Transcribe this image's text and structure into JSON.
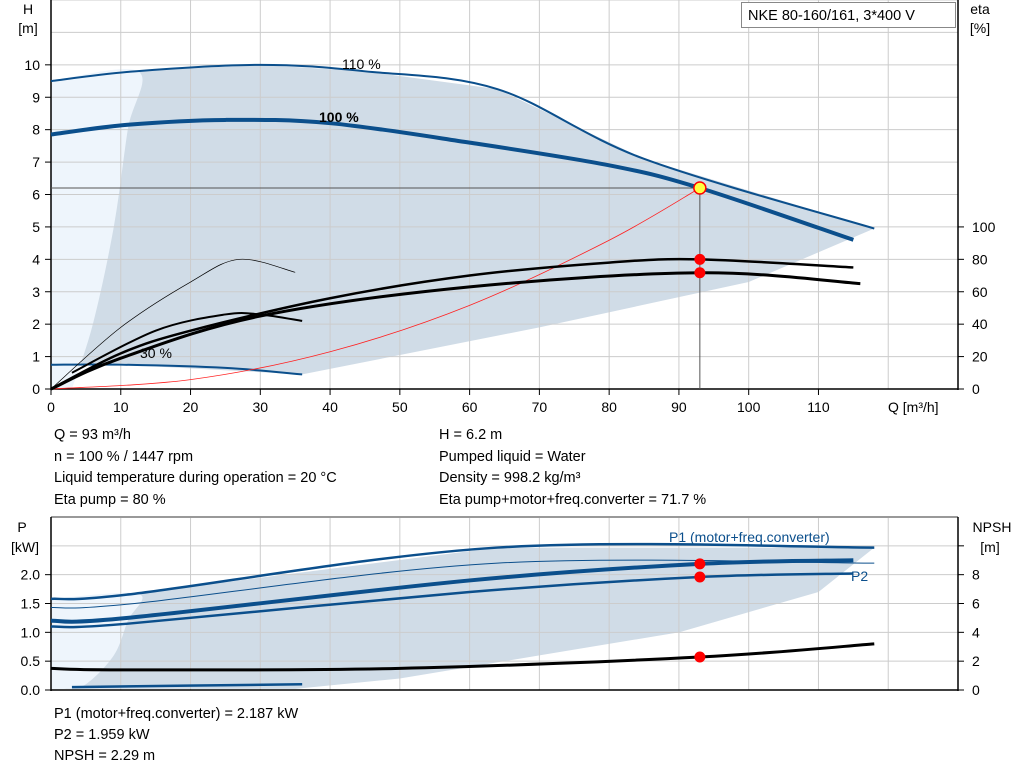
{
  "title_box": "NKE 80-160/161, 3*400 V",
  "chart_data": [
    {
      "type": "line",
      "name": "head-efficiency",
      "xlabel": "Q [m³/h]",
      "ylabel_left": [
        "H",
        "[m]"
      ],
      "ylabel_right": [
        "eta",
        "[%]"
      ],
      "xlim": [
        0,
        130
      ],
      "ylim": [
        0,
        12
      ],
      "y2lim": [
        0,
        240
      ],
      "xticks": [
        0,
        10,
        20,
        30,
        40,
        50,
        60,
        70,
        80,
        90,
        100,
        110
      ],
      "yticks": [
        0,
        1,
        2,
        3,
        4,
        5,
        6,
        7,
        8,
        9,
        10
      ],
      "y2ticks": [
        0,
        20,
        40,
        60,
        80,
        100
      ],
      "grid": true,
      "series": [
        {
          "name": "110 %",
          "axis": "H",
          "color": "#0b4f8c",
          "width": 2,
          "points": [
            [
              0,
              9.5
            ],
            [
              12,
              9.8
            ],
            [
              30,
              10.0
            ],
            [
              45,
              9.8
            ],
            [
              64,
              9.25
            ],
            [
              85,
              7.1
            ],
            [
              118,
              4.95
            ]
          ]
        },
        {
          "name": "100 %",
          "axis": "H",
          "color": "#0b4f8c",
          "width": 4,
          "points": [
            [
              0,
              7.85
            ],
            [
              11,
              8.15
            ],
            [
              25,
              8.3
            ],
            [
              40,
              8.2
            ],
            [
              60,
              7.6
            ],
            [
              80,
              6.9
            ],
            [
              93,
              6.2
            ],
            [
              115,
              4.6
            ]
          ]
        },
        {
          "name": "30 %",
          "axis": "H",
          "color": "#0b4f8c",
          "width": 2,
          "points": [
            [
              0,
              0.75
            ],
            [
              10,
              0.75
            ],
            [
              25,
              0.65
            ],
            [
              36,
              0.45
            ]
          ]
        },
        {
          "axis": "H",
          "color": "#ff2020",
          "width": 0.8,
          "points": [
            [
              0,
              0
            ],
            [
              20,
              0.29
            ],
            [
              40,
              1.15
            ],
            [
              60,
              2.58
            ],
            [
              80,
              4.59
            ],
            [
              93,
              6.2
            ]
          ]
        },
        {
          "axis": "eta",
          "color": "#000",
          "width": 2.5,
          "points": [
            [
              0,
              0
            ],
            [
              10,
              22
            ],
            [
              20,
              36
            ],
            [
              40,
              56
            ],
            [
              60,
              70
            ],
            [
              80,
              78
            ],
            [
              93,
              80
            ],
            [
              115,
              75
            ]
          ]
        },
        {
          "axis": "eta",
          "color": "#000",
          "width": 3,
          "points": [
            [
              0,
              0
            ],
            [
              10,
              19
            ],
            [
              30,
              45
            ],
            [
              60,
              63
            ],
            [
              93,
              71.7
            ],
            [
              116,
              65
            ]
          ]
        },
        {
          "axis": "eta",
          "color": "#000",
          "width": 0.7,
          "points": [
            [
              0,
              0
            ],
            [
              10,
              38
            ],
            [
              20,
              66
            ],
            [
              27,
              80
            ],
            [
              35,
              72
            ]
          ]
        },
        {
          "axis": "eta",
          "color": "#000",
          "width": 2,
          "points": [
            [
              3,
              10
            ],
            [
              15,
              36
            ],
            [
              25,
              46
            ],
            [
              30,
              46
            ],
            [
              36,
              42
            ]
          ]
        }
      ],
      "operating_point": {
        "Q": 93,
        "H": 6.2,
        "eta_pump": 80,
        "eta_total": 71.7
      }
    },
    {
      "type": "line",
      "name": "power-npsh",
      "ylabel_left": [
        "P",
        "[kW]"
      ],
      "ylabel_right": [
        "NPSH",
        "[m]"
      ],
      "xlim": [
        0,
        130
      ],
      "ylim": [
        0,
        3
      ],
      "y2lim": [
        0,
        12
      ],
      "yticks": [
        0.0,
        0.5,
        1.0,
        1.5,
        2.0
      ],
      "yticklabels": [
        "0.0",
        "0.5",
        "1.0",
        "1.5",
        "2.0"
      ],
      "y2ticks": [
        0,
        2,
        4,
        6,
        8,
        10
      ],
      "y2ticklabels": [
        "0",
        "2",
        "4",
        "6",
        "8",
        ""
      ],
      "series": [
        {
          "axis": "P",
          "color": "#0b4f8c",
          "width": 2.5,
          "points": [
            [
              0,
              1.58
            ],
            [
              12,
              1.67
            ],
            [
              64,
              2.47
            ],
            [
              118,
              2.47
            ]
          ]
        },
        {
          "axis": "P",
          "color": "#0b4f8c",
          "width": 1,
          "points": [
            [
              0,
              1.43
            ],
            [
              12,
              1.5
            ],
            [
              64,
              2.2
            ],
            [
              118,
              2.2
            ]
          ]
        },
        {
          "name": "P1 (motor+freq.converter)",
          "axis": "P",
          "color": "#0b4f8c",
          "width": 4,
          "points": [
            [
              0,
              1.2
            ],
            [
              11,
              1.25
            ],
            [
              60,
              1.9
            ],
            [
              93,
              2.187
            ],
            [
              115,
              2.25
            ]
          ]
        },
        {
          "name": "P2",
          "axis": "P",
          "color": "#0b4f8c",
          "width": 2.5,
          "points": [
            [
              0,
              1.1
            ],
            [
              11,
              1.15
            ],
            [
              60,
              1.7
            ],
            [
              93,
              1.959
            ],
            [
              115,
              2.02
            ]
          ]
        },
        {
          "axis": "NPSH",
          "color": "#000",
          "width": 3,
          "points": [
            [
              0,
              1.5
            ],
            [
              10,
              1.4
            ],
            [
              50,
              1.5
            ],
            [
              93,
              2.29
            ],
            [
              118,
              3.2
            ]
          ]
        },
        {
          "axis": "P",
          "color": "#0b4f8c",
          "width": 2.5,
          "points": [
            [
              3,
              0.05
            ],
            [
              36,
              0.1
            ]
          ]
        }
      ],
      "operating_point": {
        "P1": 2.187,
        "P2": 1.959,
        "NPSH": 2.29
      }
    }
  ],
  "info_top": {
    "left": [
      "Q = 93 m³/h",
      "n = 100 % / 1447 rpm",
      "Liquid temperature during operation = 20 °C",
      "Eta pump = 80 %"
    ],
    "right": [
      "H = 6.2 m",
      "Pumped liquid = Water",
      "Density = 998.2 kg/m³",
      "Eta pump+motor+freq.converter = 71.7 %"
    ]
  },
  "info_bottom": [
    "P1 (motor+freq.converter) = 2.187 kW",
    "P2 = 1.959 kW",
    "NPSH = 2.29 m"
  ],
  "colors": {
    "curve": "#0b4f8c",
    "area": "#d0dce7",
    "area_light": "#eef5fc",
    "point": "#ff0000"
  }
}
